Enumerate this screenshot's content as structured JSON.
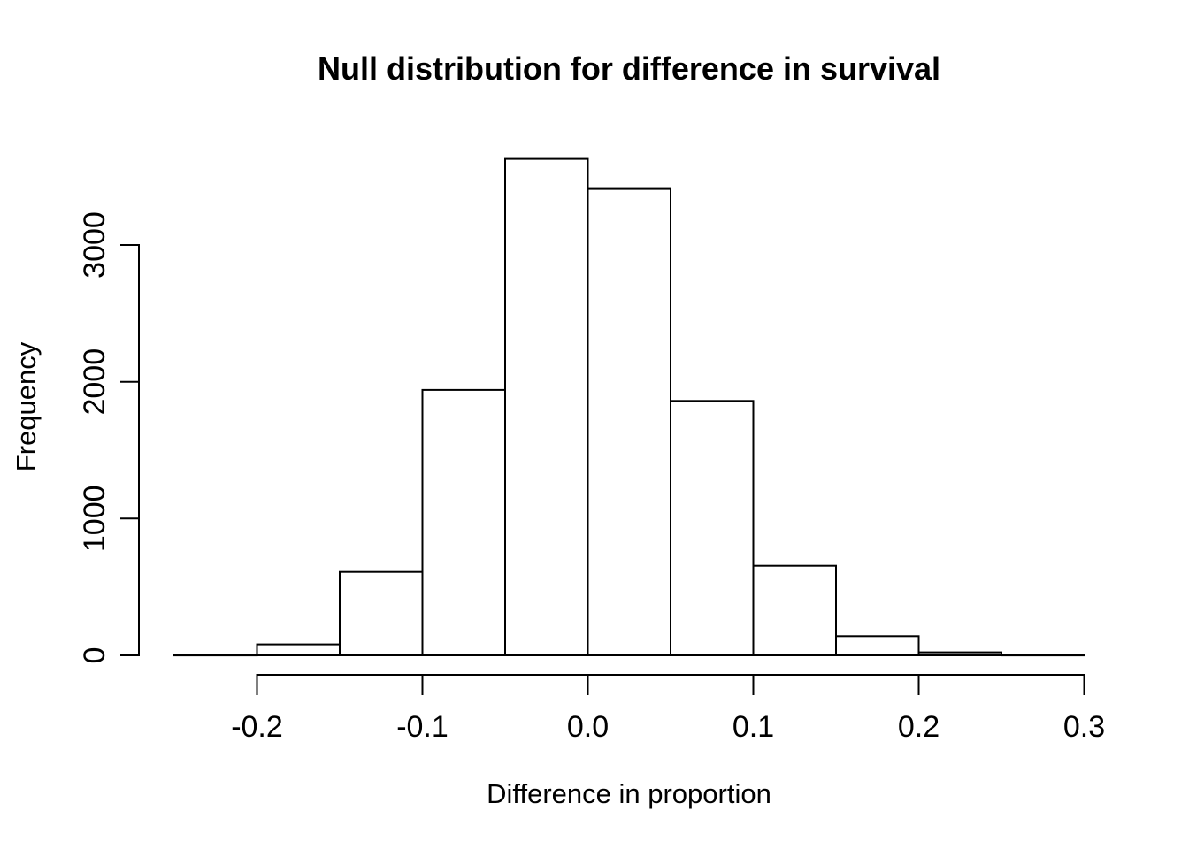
{
  "page": {
    "background_color": "#ffffff",
    "text_color": "#000000"
  },
  "chart_data": {
    "type": "histogram",
    "title": "Null distribution for difference in survival",
    "xlabel": "Difference in proportion",
    "ylabel": "Frequency",
    "bin_breaks": [
      -0.25,
      -0.2,
      -0.15,
      -0.1,
      -0.05,
      0.0,
      0.05,
      0.1,
      0.15,
      0.2,
      0.25,
      0.3
    ],
    "counts": [
      3,
      80,
      610,
      1940,
      3630,
      3410,
      1860,
      655,
      140,
      22,
      3
    ],
    "x_ticks": [
      -0.2,
      -0.1,
      0.0,
      0.1,
      0.2,
      0.3
    ],
    "x_tick_labels": [
      "-0.2",
      "-0.1",
      "0.0",
      "0.1",
      "0.2",
      "0.3"
    ],
    "y_ticks": [
      0,
      1000,
      2000,
      3000
    ],
    "y_tick_labels": [
      "0",
      "1000",
      "2000",
      "3000"
    ],
    "xlim": [
      -0.25,
      0.3
    ],
    "ylim": [
      0,
      3000
    ],
    "grid": false,
    "legend": null,
    "bar_fill": "#ffffff",
    "bar_stroke": "#000000",
    "axis_color": "#000000"
  }
}
